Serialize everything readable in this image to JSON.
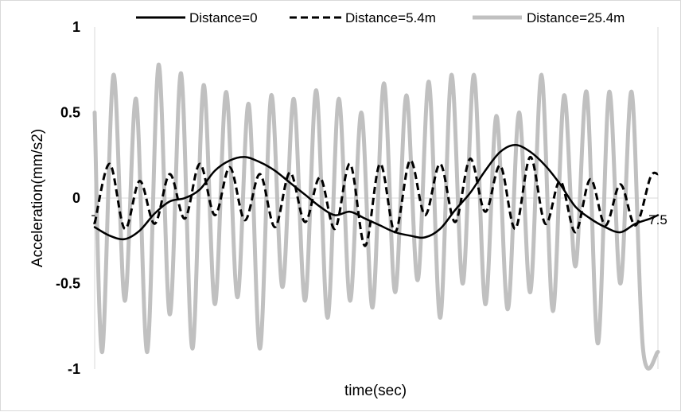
{
  "chart_data": {
    "type": "line",
    "xlabel": "time(sec)",
    "ylabel": "Acceleration(mm/s2)",
    "xlim": [
      7,
      7.5
    ],
    "ylim": [
      -1,
      1
    ],
    "x_ticks": [
      "7",
      "7.5"
    ],
    "y_ticks": [
      "1",
      "0.5",
      "0",
      "-0.5",
      "-1"
    ],
    "grid": false,
    "legend_position": "top",
    "series": [
      {
        "name": "Distance=0",
        "color": "#000000",
        "style": "solid",
        "x": [
          7.0,
          7.0133,
          7.0267,
          7.04,
          7.0533,
          7.0667,
          7.08,
          7.0933,
          7.1067,
          7.12,
          7.1333,
          7.1467,
          7.16,
          7.1733,
          7.1867,
          7.2,
          7.2133,
          7.2267,
          7.24,
          7.2533,
          7.2667,
          7.28,
          7.2933,
          7.3067,
          7.32,
          7.3333,
          7.3467,
          7.36,
          7.3733,
          7.3867,
          7.4,
          7.4133,
          7.4267,
          7.44,
          7.4533,
          7.4667,
          7.48,
          7.4933,
          7.5
        ],
        "y": [
          -0.17,
          -0.22,
          -0.24,
          -0.19,
          -0.09,
          -0.02,
          0.0,
          0.05,
          0.16,
          0.22,
          0.24,
          0.21,
          0.16,
          0.09,
          0.02,
          -0.05,
          -0.1,
          -0.08,
          -0.12,
          -0.16,
          -0.2,
          -0.22,
          -0.23,
          -0.18,
          -0.07,
          0.03,
          0.16,
          0.27,
          0.31,
          0.27,
          0.19,
          0.08,
          -0.05,
          -0.12,
          -0.17,
          -0.2,
          -0.15,
          -0.12,
          -0.1
        ]
      },
      {
        "name": "Distance=5.4m",
        "color": "#000000",
        "style": "dashed",
        "x": [
          7.0,
          7.0133,
          7.0267,
          7.04,
          7.0533,
          7.0667,
          7.08,
          7.0933,
          7.1067,
          7.12,
          7.1333,
          7.1467,
          7.16,
          7.1733,
          7.1867,
          7.2,
          7.2133,
          7.2267,
          7.24,
          7.2533,
          7.2667,
          7.28,
          7.2933,
          7.3067,
          7.32,
          7.3333,
          7.3467,
          7.36,
          7.3733,
          7.3867,
          7.4,
          7.4133,
          7.4267,
          7.44,
          7.4533,
          7.4667,
          7.48,
          7.4933,
          7.5
        ],
        "y": [
          -0.15,
          0.2,
          -0.18,
          0.1,
          -0.15,
          0.14,
          -0.12,
          0.2,
          -0.1,
          0.18,
          -0.13,
          0.14,
          -0.17,
          0.15,
          -0.14,
          0.12,
          -0.18,
          0.2,
          -0.28,
          0.2,
          -0.2,
          0.22,
          -0.1,
          0.2,
          -0.14,
          0.23,
          -0.08,
          0.19,
          -0.18,
          0.24,
          -0.15,
          0.1,
          -0.2,
          0.11,
          -0.16,
          0.08,
          -0.16,
          0.12,
          0.14
        ]
      },
      {
        "name": "Distance=25.4m",
        "color": "#c0c0c0",
        "style": "solid",
        "x": [
          7.0,
          7.0067,
          7.0167,
          7.0267,
          7.0367,
          7.0467,
          7.0567,
          7.0667,
          7.0767,
          7.0867,
          7.0967,
          7.1067,
          7.1167,
          7.1267,
          7.1367,
          7.1467,
          7.1567,
          7.1667,
          7.1767,
          7.1867,
          7.1967,
          7.2067,
          7.2167,
          7.2267,
          7.2367,
          7.2467,
          7.2567,
          7.2667,
          7.2767,
          7.2867,
          7.2967,
          7.3067,
          7.3167,
          7.3267,
          7.3367,
          7.3467,
          7.3567,
          7.3667,
          7.3767,
          7.3867,
          7.3967,
          7.4067,
          7.4167,
          7.4267,
          7.4367,
          7.4467,
          7.4567,
          7.4667,
          7.4767,
          7.4867,
          7.5
        ],
        "y": [
          0.5,
          -0.9,
          0.72,
          -0.6,
          0.58,
          -0.9,
          0.78,
          -0.68,
          0.73,
          -0.88,
          0.66,
          -0.62,
          0.62,
          -0.58,
          0.55,
          -0.88,
          0.6,
          -0.52,
          0.58,
          -0.6,
          0.63,
          -0.7,
          0.58,
          -0.6,
          0.5,
          -0.64,
          0.67,
          -0.55,
          0.6,
          -0.48,
          0.68,
          -0.7,
          0.72,
          -0.5,
          0.72,
          -0.62,
          0.48,
          -0.65,
          0.5,
          -0.55,
          0.72,
          -0.66,
          0.6,
          -0.4,
          0.62,
          -0.85,
          0.62,
          -0.5,
          0.62,
          -0.88,
          -0.9
        ]
      }
    ]
  }
}
